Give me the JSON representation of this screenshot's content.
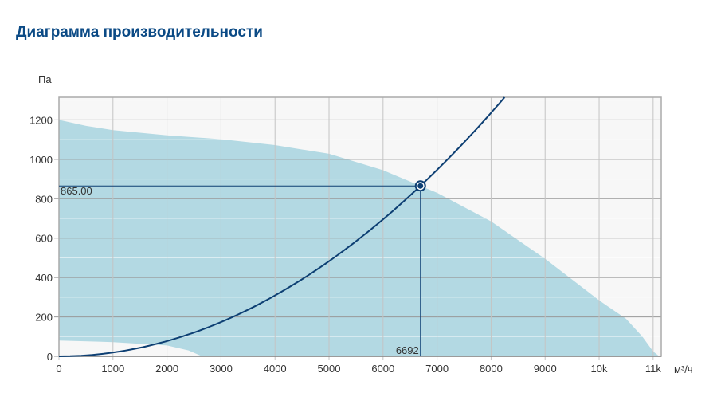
{
  "page_title": "Диаграмма производительности",
  "chart_data": {
    "type": "area",
    "title": "Диаграмма производительности",
    "xlabel": "м³/ч",
    "ylabel": "Па",
    "xlim": [
      0,
      11150
    ],
    "ylim": [
      0,
      1315
    ],
    "x_ticks": [
      0,
      1000,
      2000,
      3000,
      4000,
      5000,
      6000,
      7000,
      8000,
      9000,
      10000,
      11000
    ],
    "x_tick_labels": [
      "0",
      "1000",
      "2000",
      "3000",
      "4000",
      "5000",
      "6000",
      "7000",
      "8000",
      "9000",
      "10k",
      "11k"
    ],
    "y_ticks": [
      0,
      200,
      400,
      600,
      800,
      1000,
      1200
    ],
    "y_tick_labels": [
      "0",
      "200",
      "400",
      "600",
      "800",
      "1000",
      "1200"
    ],
    "grid": true,
    "colors": {
      "area": "#b3d9e3",
      "curve": "#0d3f73",
      "plot_bg": "#f7f7f7",
      "grid": "#999999",
      "minor_grid": "#dddddd"
    },
    "fan_range_upper": [
      [
        0,
        1200
      ],
      [
        500,
        1170
      ],
      [
        1000,
        1148
      ],
      [
        2000,
        1122
      ],
      [
        3000,
        1102
      ],
      [
        4000,
        1072
      ],
      [
        5000,
        1028
      ],
      [
        6000,
        945
      ],
      [
        6692,
        865
      ],
      [
        7000,
        830
      ],
      [
        8000,
        685
      ],
      [
        9000,
        495
      ],
      [
        10000,
        284
      ],
      [
        10500,
        190
      ],
      [
        10800,
        100
      ],
      [
        11000,
        25
      ],
      [
        11100,
        3
      ]
    ],
    "fan_range_lower": [
      [
        0,
        80
      ],
      [
        1000,
        72
      ],
      [
        2000,
        55
      ],
      [
        2400,
        30
      ],
      [
        2650,
        0
      ]
    ],
    "system_curve": {
      "name": "system",
      "operating_flow": 6692,
      "operating_pressure": 865
    },
    "operating_point": {
      "x": 6692,
      "y": 865,
      "x_label": "6692",
      "y_label": "865.00"
    }
  }
}
